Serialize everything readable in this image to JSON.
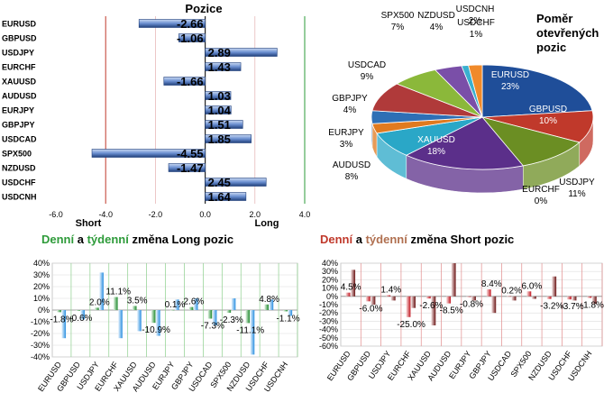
{
  "chart_data": [
    {
      "type": "bar",
      "orientation": "horizontal",
      "title": "Pozice",
      "categories": [
        "EURUSD",
        "GBPUSD",
        "USDJPY",
        "EURCHF",
        "XAUUSD",
        "AUDUSD",
        "EURJPY",
        "GBPJPY",
        "USDCAD",
        "SPX500",
        "NZDUSD",
        "USDCHF",
        "USDCNH"
      ],
      "values": [
        -2.66,
        -1.06,
        2.89,
        1.43,
        -1.66,
        1.03,
        1.04,
        1.51,
        1.85,
        -4.55,
        -1.47,
        2.45,
        1.64
      ],
      "value_labels": [
        "-2.66",
        "-1.06",
        "2.89",
        "1.43",
        "-1.66",
        "1.03",
        "1.04",
        "1.51",
        "1.85",
        "-4.55",
        "-1.47",
        "2.45",
        "1.64"
      ],
      "xlim": [
        -6,
        4
      ],
      "xticks": [
        "-6.0",
        "-4.0",
        "-2.0",
        "0.0",
        "2.0",
        "4.0"
      ],
      "short_label": "Short",
      "long_label": "Long",
      "colors": {
        "bar": "#5a7fc2",
        "bar_dark": "#1f3f7a",
        "short_line": "#c0392b",
        "long_line": "#2e9b3a"
      }
    },
    {
      "type": "pie",
      "title_lines": [
        "Poměr",
        "otevřených",
        "pozic"
      ],
      "slices": [
        {
          "name": "EURUSD",
          "value": 23,
          "label": "23%",
          "color": "#1f4e99"
        },
        {
          "name": "GBPUSD",
          "value": 10,
          "label": "10%",
          "color": "#c0392b"
        },
        {
          "name": "EURCHF",
          "value": 0,
          "label": "0%",
          "color": "#cccccc"
        },
        {
          "name": "USDJPY",
          "value": 11,
          "label": "11%",
          "color": "#6b8e23"
        },
        {
          "name": "XAUUSD",
          "value": 18,
          "label": "18%",
          "color": "#5b2f8a"
        },
        {
          "name": "AUDUSD",
          "value": 8,
          "label": "8%",
          "color": "#2aa7c7"
        },
        {
          "name": "EURJPY",
          "value": 3,
          "label": "3%",
          "color": "#e07a1f"
        },
        {
          "name": "GBPJPY",
          "value": 4,
          "label": "4%",
          "color": "#2e6fb5"
        },
        {
          "name": "USDCAD",
          "value": 9,
          "label": "9%",
          "color": "#b03a3a"
        },
        {
          "name": "SPX500",
          "value": 7,
          "label": "7%",
          "color": "#8bb83a"
        },
        {
          "name": "NZDUSD",
          "value": 4,
          "label": "4%",
          "color": "#7a4fa8"
        },
        {
          "name": "USDCHF",
          "value": 1,
          "label": "1%",
          "color": "#3ab0cf"
        },
        {
          "name": "USDCNH",
          "value": 2,
          "label": "2%",
          "color": "#f08a2a"
        }
      ]
    },
    {
      "type": "bar",
      "title_parts": [
        "Denní",
        " a ",
        "týdenní",
        " změna Long pozic"
      ],
      "title_colors": [
        "#2e9b3a",
        "#000000",
        "#2e9b3a",
        "#000000"
      ],
      "categories": [
        "EURUSD",
        "GBPUSD",
        "USDJPY",
        "EURCHF",
        "XAUUSD",
        "AUDUSD",
        "EURJPY",
        "GBPJPY",
        "USDCAD",
        "SPX500",
        "NZDUSD",
        "USDCHF",
        "USDCNH"
      ],
      "series": [
        {
          "values": [
            -1.8,
            -0.6,
            2.0,
            11.1,
            3.5,
            -10.9,
            0.1,
            2.6,
            -7.3,
            -2.3,
            -11.1,
            4.8,
            -1.1
          ],
          "labels": [
            "-1.8%",
            "-0.6%",
            "2.0%",
            "11.1%",
            "3.5%",
            "-10.9%",
            "0.1%",
            "2.6%",
            "-7.3%",
            "-2.3%",
            "-11.1%",
            "4.8%",
            "-1.1%"
          ],
          "color": "#2e9b3a"
        },
        {
          "values": [
            -24,
            -8,
            32,
            -24,
            -18,
            -22,
            9,
            10,
            -13,
            10,
            -38,
            9,
            -5
          ],
          "color": "#4aa3e8"
        }
      ],
      "ylim": [
        -40,
        40
      ],
      "yticks": [
        "-40%",
        "-30%",
        "-20%",
        "-10%",
        "0%",
        "10%",
        "20%",
        "30%",
        "40%"
      ]
    },
    {
      "type": "bar",
      "title_parts": [
        "Denní",
        " a ",
        "týdenní",
        " změna Short pozic"
      ],
      "title_colors": [
        "#c0392b",
        "#000000",
        "#b07050",
        "#000000"
      ],
      "categories": [
        "EURUSD",
        "GBPUSD",
        "USDJPY",
        "EURCHF",
        "XAUUSD",
        "AUDUSD",
        "EURJPY",
        "GBPJPY",
        "USDCAD",
        "SPX500",
        "NZDUSD",
        "USDCHF",
        "USDCNH"
      ],
      "series": [
        {
          "values": [
            4.5,
            -6.0,
            1.4,
            -25.0,
            -2.6,
            -8.5,
            -0.8,
            8.4,
            0.2,
            6.0,
            -3.2,
            -3.7,
            -1.8
          ],
          "labels": [
            "4.5%",
            "-6.0%",
            "1.4%",
            "-25.0%",
            "-2.6%",
            "-8.5%",
            "-0.8%",
            "8.4%",
            "0.2%",
            "6.0%",
            "-3.2%",
            "-3.7%",
            "-1.8%"
          ],
          "color": "#c0141e"
        },
        {
          "values": [
            32,
            -10,
            -5,
            -14,
            -35,
            40,
            -5,
            -20,
            -5,
            -3,
            24,
            -5,
            -9
          ],
          "color": "#7a1a1a"
        }
      ],
      "ylim": [
        -60,
        40
      ],
      "yticks": [
        "-60%",
        "-50%",
        "-40%",
        "-30%",
        "-20%",
        "-10%",
        "0%",
        "10%",
        "20%",
        "30%",
        "40%"
      ]
    }
  ]
}
